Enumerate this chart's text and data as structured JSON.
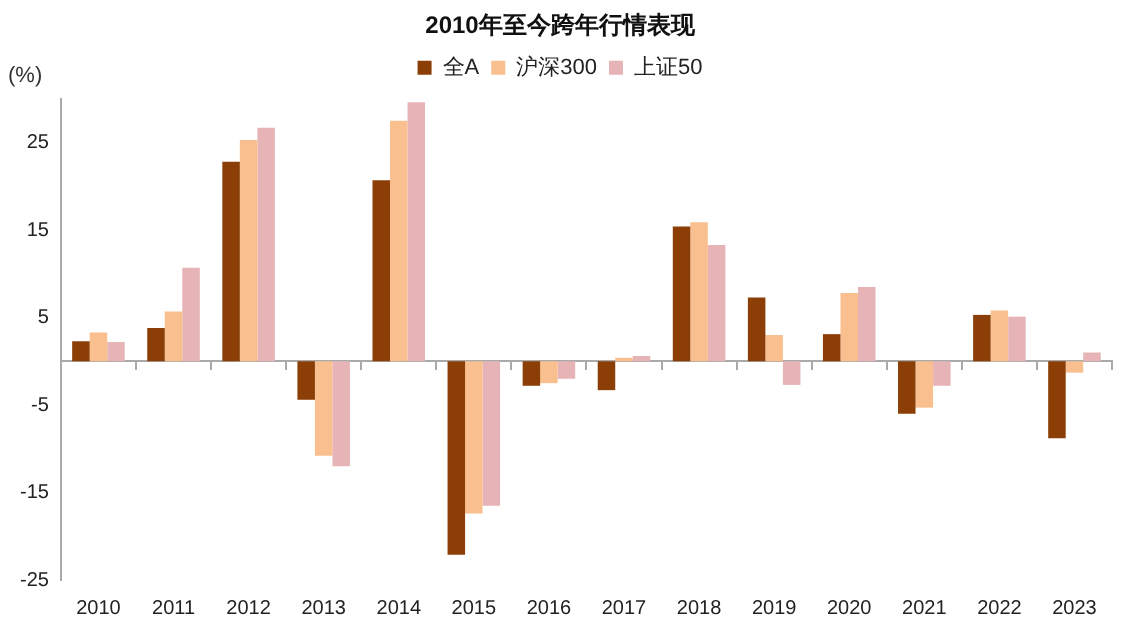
{
  "chart_data": {
    "type": "bar",
    "title": "2010年至今跨年行情表现",
    "ylabel": "(%)",
    "categories": [
      "2010",
      "2011",
      "2012",
      "2013",
      "2014",
      "2015",
      "2016",
      "2017",
      "2018",
      "2019",
      "2020",
      "2021",
      "2022",
      "2023"
    ],
    "series": [
      {
        "name": "全A",
        "color": "#8b3e06",
        "values": [
          2.3,
          3.8,
          22.8,
          -4.4,
          20.7,
          -22.1,
          -2.8,
          -3.3,
          15.4,
          7.3,
          3.1,
          -6.0,
          5.3,
          -8.8
        ]
      },
      {
        "name": "沪深300",
        "color": "#f9bf8f",
        "values": [
          3.3,
          5.7,
          25.3,
          -10.8,
          27.5,
          -17.4,
          -2.5,
          0.4,
          15.9,
          3.0,
          7.8,
          -5.3,
          5.8,
          -1.3
        ]
      },
      {
        "name": "上证50",
        "color": "#e6b4b7",
        "values": [
          2.2,
          10.7,
          26.7,
          -12.0,
          29.6,
          -16.5,
          -2.0,
          0.6,
          13.3,
          -2.7,
          8.5,
          -2.8,
          5.1,
          1.0
        ]
      }
    ],
    "ylim": [
      -25,
      30
    ],
    "yticks": [
      25,
      15,
      5,
      -5,
      -15,
      -25
    ],
    "grid": false,
    "legend": "top"
  }
}
